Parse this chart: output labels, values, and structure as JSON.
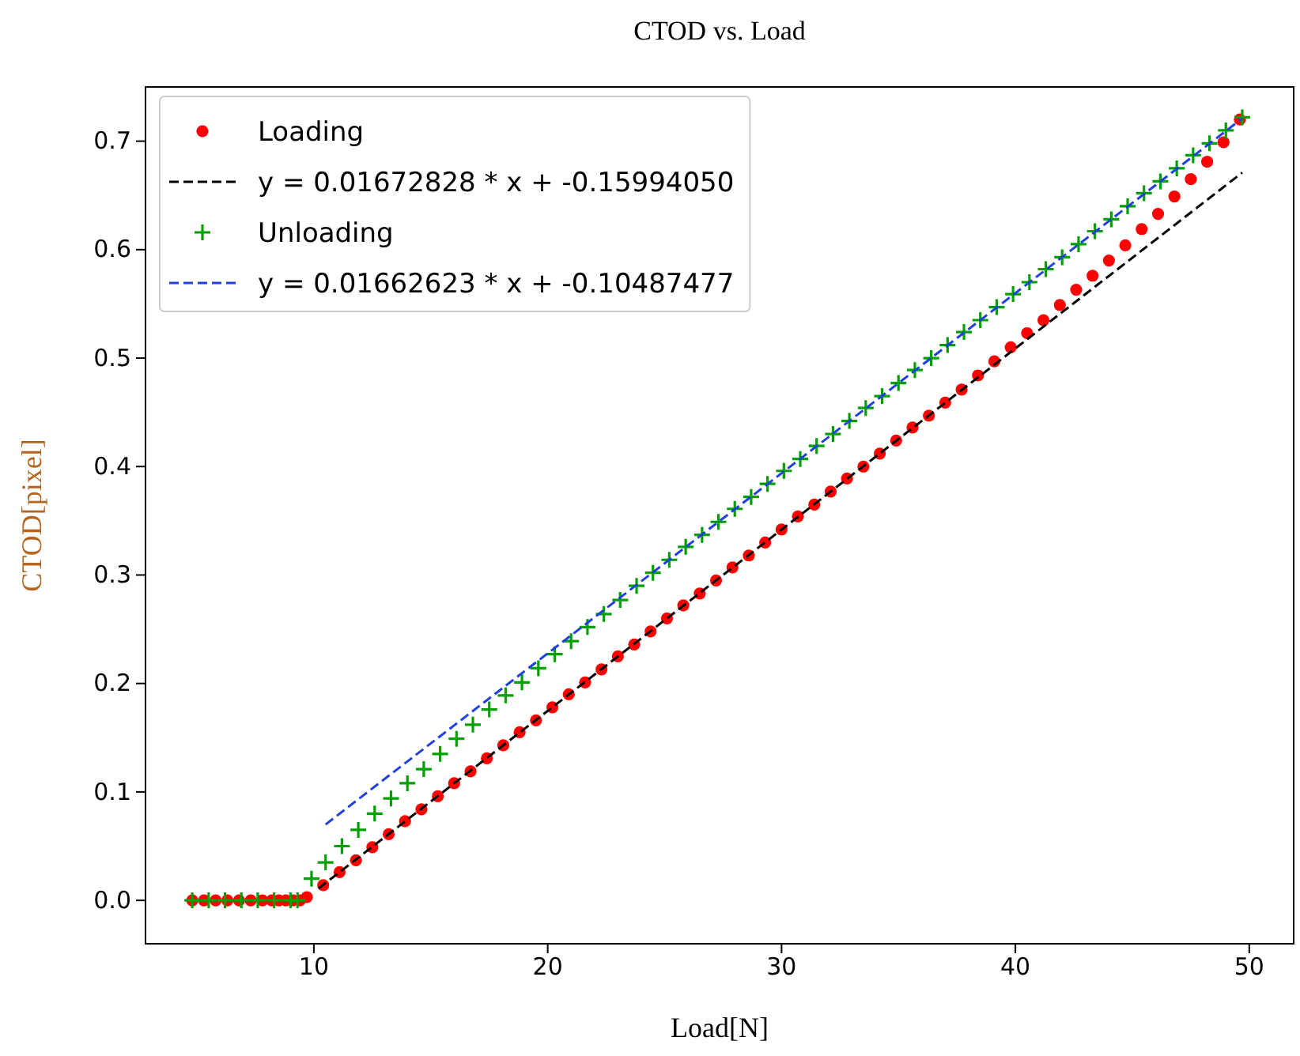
{
  "chart_data": {
    "type": "scatter",
    "title": "CTOD vs. Load",
    "xlabel": "Load[N]",
    "ylabel": "CTOD[pixel]",
    "xlim": [
      2.8,
      51.9
    ],
    "ylim": [
      -0.04,
      0.75
    ],
    "xticks": [
      10,
      20,
      30,
      40,
      50
    ],
    "yticks": [
      {
        "value": 0,
        "label": "0.0"
      },
      {
        "value": 0.1,
        "label": "0.1"
      },
      {
        "value": 0.2,
        "label": "0.2"
      },
      {
        "value": 0.3,
        "label": "0.3"
      },
      {
        "value": 0.4,
        "label": "0.4"
      },
      {
        "value": 0.5,
        "label": "0.5"
      },
      {
        "value": 0.6,
        "label": "0.6"
      },
      {
        "value": 0.7,
        "label": "0.7"
      }
    ],
    "grid": false,
    "legend": "top left",
    "series": [
      {
        "name": "Loading",
        "marker": "circle",
        "color": "#ff0000",
        "x": [
          4.8,
          5.3,
          5.8,
          6.3,
          6.8,
          7.3,
          7.8,
          8.2,
          8.5,
          8.8,
          9.1,
          9.4,
          9.7,
          10.4,
          11.1,
          11.8,
          12.5,
          13.2,
          13.9,
          14.6,
          15.3,
          16.0,
          16.7,
          17.4,
          18.1,
          18.8,
          19.5,
          20.2,
          20.9,
          21.6,
          22.3,
          23.0,
          23.7,
          24.4,
          25.1,
          25.8,
          26.5,
          27.2,
          27.9,
          28.6,
          29.3,
          30.0,
          30.7,
          31.4,
          32.1,
          32.8,
          33.5,
          34.2,
          34.9,
          35.6,
          36.3,
          37.0,
          37.7,
          38.4,
          39.1,
          39.8,
          40.5,
          41.2,
          41.9,
          42.6,
          43.3,
          44.0,
          44.7,
          45.4,
          46.1,
          46.8,
          47.5,
          48.2,
          48.9,
          49.6
        ],
        "values": [
          0,
          0,
          0,
          0,
          0,
          0,
          0,
          0,
          0,
          0,
          0,
          0,
          0.003,
          0.014,
          0.026,
          0.037,
          0.049,
          0.061,
          0.073,
          0.084,
          0.096,
          0.108,
          0.119,
          0.131,
          0.143,
          0.155,
          0.166,
          0.178,
          0.19,
          0.201,
          0.213,
          0.225,
          0.236,
          0.248,
          0.26,
          0.272,
          0.283,
          0.295,
          0.307,
          0.318,
          0.33,
          0.342,
          0.354,
          0.365,
          0.377,
          0.389,
          0.4,
          0.412,
          0.424,
          0.436,
          0.447,
          0.459,
          0.471,
          0.484,
          0.497,
          0.51,
          0.523,
          0.535,
          0.549,
          0.563,
          0.576,
          0.59,
          0.604,
          0.619,
          0.633,
          0.649,
          0.665,
          0.681,
          0.699,
          0.72
        ]
      },
      {
        "name": "y = 0.01672828 * x + -0.15994050",
        "type": "line",
        "line_style": "dashed",
        "marker": "none",
        "color": "#000000",
        "x": [
          10.2,
          49.7
        ],
        "values": [
          0.011,
          0.671
        ]
      },
      {
        "name": "Unloading",
        "marker": "cross",
        "color": "#00a000",
        "x": [
          4.8,
          5.5,
          6.2,
          6.9,
          7.6,
          8.3,
          9.0,
          9.3,
          9.9,
          10.5,
          11.2,
          11.9,
          12.6,
          13.3,
          14.0,
          14.7,
          15.4,
          16.1,
          16.8,
          17.5,
          18.2,
          18.9,
          19.6,
          20.3,
          21.0,
          21.7,
          22.4,
          23.1,
          23.8,
          24.5,
          25.2,
          25.9,
          26.6,
          27.3,
          28.0,
          28.7,
          29.4,
          30.1,
          30.8,
          31.5,
          32.2,
          32.9,
          33.6,
          34.3,
          35.0,
          35.7,
          36.4,
          37.1,
          37.8,
          38.5,
          39.2,
          39.9,
          40.6,
          41.3,
          42.0,
          42.7,
          43.4,
          44.1,
          44.8,
          45.5,
          46.2,
          46.9,
          47.6,
          48.3,
          49.0,
          49.7
        ],
        "values": [
          0,
          0,
          0,
          0,
          0,
          0,
          0,
          0,
          0.02,
          0.035,
          0.05,
          0.065,
          0.08,
          0.094,
          0.108,
          0.121,
          0.135,
          0.149,
          0.162,
          0.176,
          0.189,
          0.201,
          0.214,
          0.227,
          0.239,
          0.252,
          0.264,
          0.277,
          0.29,
          0.302,
          0.314,
          0.326,
          0.337,
          0.349,
          0.361,
          0.372,
          0.384,
          0.396,
          0.407,
          0.419,
          0.43,
          0.442,
          0.454,
          0.465,
          0.477,
          0.489,
          0.5,
          0.512,
          0.524,
          0.535,
          0.547,
          0.559,
          0.57,
          0.582,
          0.593,
          0.605,
          0.617,
          0.628,
          0.64,
          0.652,
          0.663,
          0.675,
          0.687,
          0.698,
          0.71,
          0.722
        ]
      },
      {
        "name": "y = 0.01662623 * x + -0.10487477",
        "type": "line",
        "line_style": "dashed",
        "marker": "none",
        "color": "#2040e0",
        "x": [
          10.5,
          49.7
        ],
        "values": [
          0.07,
          0.721
        ]
      }
    ]
  }
}
